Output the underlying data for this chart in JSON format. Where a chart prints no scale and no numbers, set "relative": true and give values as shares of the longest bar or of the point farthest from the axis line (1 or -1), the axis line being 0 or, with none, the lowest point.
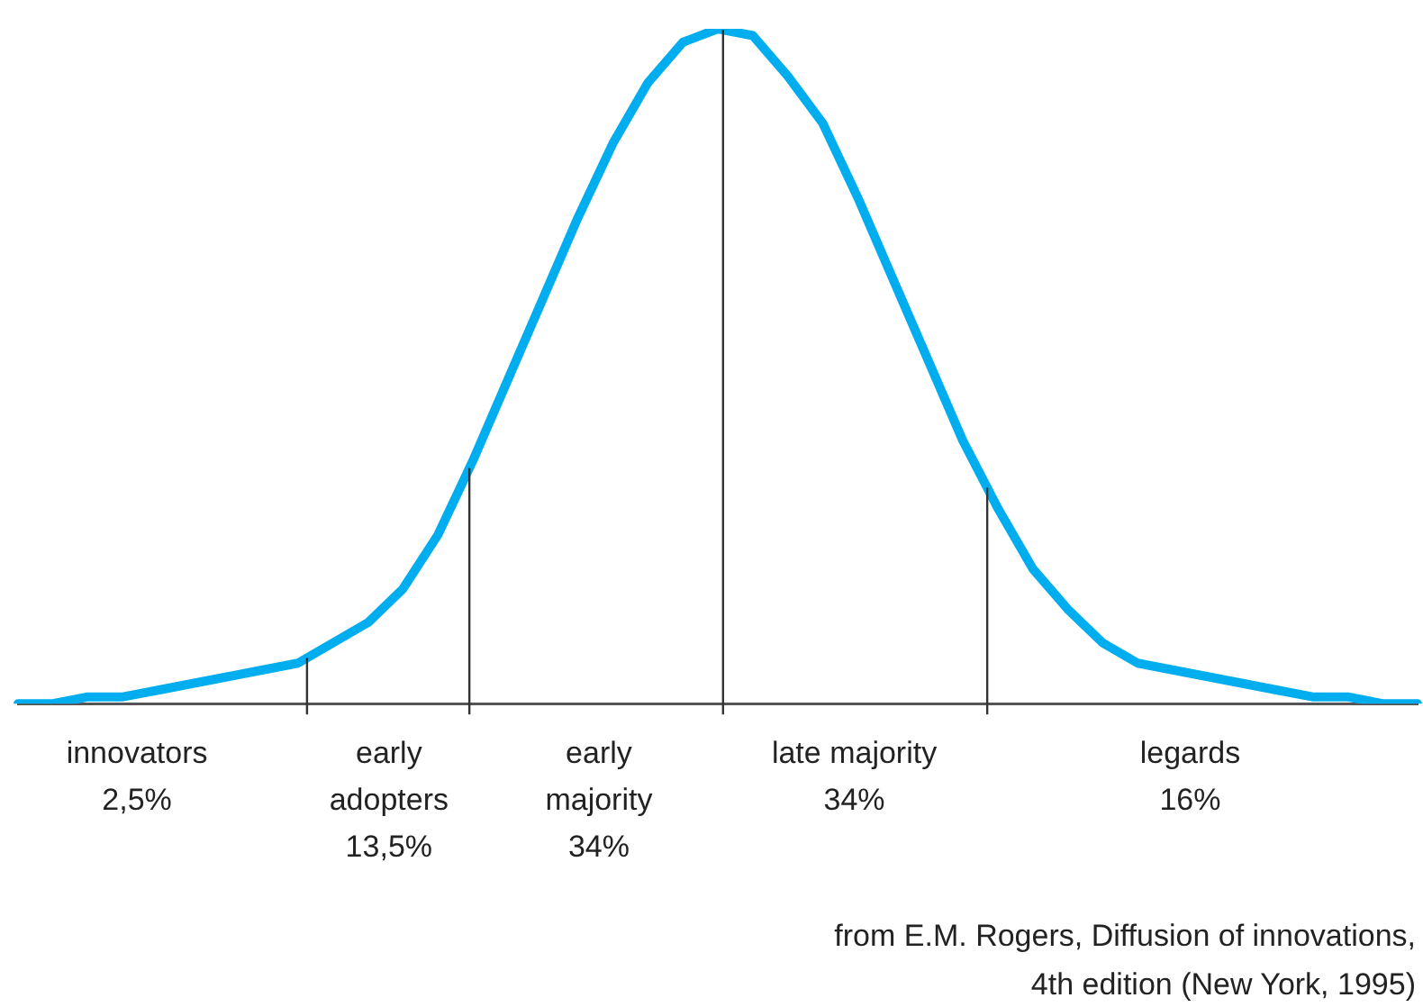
{
  "chart_data": {
    "type": "line",
    "relative": true,
    "grid": false,
    "legend": false,
    "marker": "none",
    "line_style": "solid",
    "categories": [
      null,
      null,
      null,
      null,
      null,
      null,
      null,
      null,
      null,
      null,
      null,
      null,
      null,
      null,
      null,
      null,
      null,
      null,
      null,
      null,
      null,
      null,
      null,
      null,
      null,
      null,
      null,
      null,
      null,
      null,
      null,
      null,
      null,
      null,
      null,
      null,
      null,
      null,
      null,
      null,
      null
    ],
    "series": [
      {
        "color": "#00aeef",
        "values": [
          0,
          0,
          0.01,
          0.01,
          0.02,
          0.03,
          0.04,
          0.05,
          0.06,
          0.09,
          0.12,
          0.17,
          0.25,
          0.36,
          0.48,
          0.6,
          0.72,
          0.83,
          0.92,
          0.98,
          1,
          0.99,
          0.93,
          0.86,
          0.75,
          0.63,
          0.51,
          0.39,
          0.29,
          0.2,
          0.14,
          0.09,
          0.06,
          0.05,
          0.04,
          0.03,
          0.02,
          0.01,
          0.01,
          0,
          0
        ]
      }
    ],
    "annotations": [
      "innovators\n2,5%",
      "early\nadopters\n13,5%",
      "early\nmajority\n34%",
      "late majority\n34%",
      "legards\n16%",
      "from E.M. Rogers, Diffusion of innovations,\n4th edition (New York, 1995)"
    ]
  }
}
